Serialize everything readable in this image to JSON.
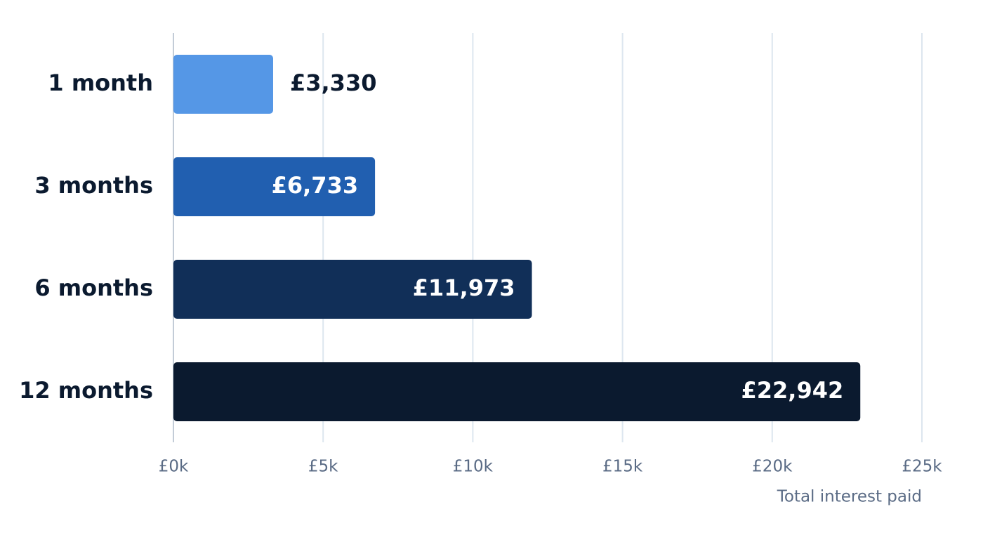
{
  "chart_data": {
    "type": "bar",
    "orientation": "horizontal",
    "categories": [
      "1 month",
      "3 months",
      "6 months",
      "12 months"
    ],
    "values": [
      3330,
      6733,
      11973,
      22942
    ],
    "value_labels": [
      "£3,330",
      "£6,733",
      "£11,973",
      "£22,942"
    ],
    "colors": [
      "#5597e6",
      "#215fb0",
      "#112f58",
      "#0b1a2f"
    ],
    "xlim": [
      0,
      25000
    ],
    "xticks": [
      {
        "value": 0,
        "label": "£0k"
      },
      {
        "value": 5000,
        "label": "£5k"
      },
      {
        "value": 10000,
        "label": "£10k"
      },
      {
        "value": 15000,
        "label": "£15k"
      },
      {
        "value": 20000,
        "label": "£20k"
      },
      {
        "value": 25000,
        "label": "£25k"
      }
    ],
    "x_label": "Total interest paid",
    "grid": true
  }
}
